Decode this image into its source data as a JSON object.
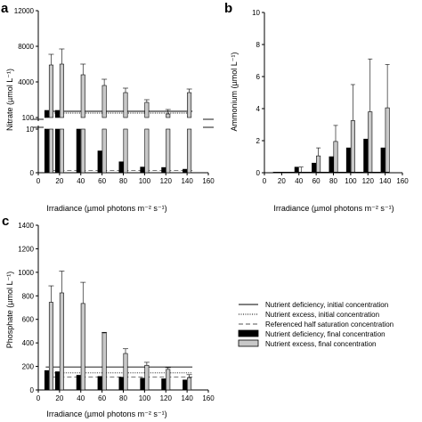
{
  "panels": {
    "a": {
      "letter": "a"
    },
    "b": {
      "letter": "b"
    },
    "c": {
      "letter": "c"
    }
  },
  "legend": {
    "items": [
      {
        "label": "Nutrient deficiency, initial concentration",
        "kind": "line-solid"
      },
      {
        "label": "Nutrient excess, initial concentration",
        "kind": "line-dotted"
      },
      {
        "label": "Referenced half saturation concentration",
        "kind": "line-dashed"
      },
      {
        "label": "Nutrient deficiency, final concentration",
        "kind": "bar-black"
      },
      {
        "label": "Nutrient excess, final concentration",
        "kind": "bar-grey"
      }
    ]
  },
  "colors": {
    "deficiency": "#000000",
    "excess": "#c8c8c8",
    "axis": "#000000"
  },
  "chart_data": [
    {
      "panel": "a",
      "type": "bar",
      "ylabel": "Nitrate (µmol L⁻¹)",
      "xlabel": "Irradiance (µmol photons m⁻² s⁻¹)",
      "xlim": [
        0,
        160
      ],
      "x_ticks": [
        "0",
        "20",
        "40",
        "60",
        "80",
        "100",
        "120",
        "140",
        "160"
      ],
      "broken_axis": true,
      "upper_ticks": [
        "100",
        "4000",
        "8000",
        "12000"
      ],
      "lower_ticks": [
        "0",
        "10"
      ],
      "x": [
        10,
        20,
        40,
        60,
        80,
        100,
        120,
        140
      ],
      "series": [
        {
          "name": "Nutrient deficiency, final concentration",
          "values": [
            100,
            100,
            10,
            5,
            2.5,
            1.3,
            1.2,
            0.8
          ]
        },
        {
          "name": "Nutrient excess, final concentration",
          "values": [
            5900,
            6000,
            4800,
            3600,
            2800,
            1700,
            300,
            2800
          ],
          "errors": [
            1200,
            1700,
            1200,
            700,
            500,
            300,
            250,
            400
          ]
        }
      ],
      "reference_lines": [
        {
          "name": "Nutrient deficiency, initial concentration",
          "value": 100
        },
        {
          "name": "Nutrient excess, initial concentration",
          "value": 100
        },
        {
          "name": "Referenced half saturation concentration",
          "value": 0.5
        }
      ]
    },
    {
      "panel": "b",
      "type": "bar",
      "ylabel": "Ammonium (µmol L⁻¹)",
      "xlabel": "Irradiance (µmol photons m⁻² s⁻¹)",
      "xlim": [
        0,
        160
      ],
      "ylim": [
        0,
        10
      ],
      "x_ticks": [
        "0",
        "20",
        "40",
        "60",
        "80",
        "100",
        "120",
        "140",
        "160"
      ],
      "y_ticks": [
        "0",
        "2",
        "4",
        "6",
        "8",
        "10"
      ],
      "x": [
        10,
        20,
        40,
        60,
        80,
        100,
        120,
        140
      ],
      "series": [
        {
          "name": "Nutrient deficiency, final concentration",
          "values": [
            0,
            0,
            0.35,
            0.6,
            1.0,
            1.55,
            2.1,
            1.55
          ]
        },
        {
          "name": "Nutrient excess, final concentration",
          "values": [
            0,
            0,
            0,
            1.05,
            1.95,
            3.25,
            3.8,
            4.05
          ],
          "errors": [
            0,
            0,
            0.35,
            0.5,
            1.0,
            2.25,
            3.3,
            2.7
          ]
        }
      ],
      "reference_lines": [
        {
          "name": "Nutrient deficiency, initial concentration",
          "value": 0
        },
        {
          "name": "Nutrient excess, initial concentration",
          "value": 0
        }
      ]
    },
    {
      "panel": "c",
      "type": "bar",
      "ylabel": "Phosphate (µmol L⁻¹)",
      "xlabel": "Irradiance (µmol photons m⁻² s⁻¹)",
      "xlim": [
        0,
        160
      ],
      "ylim": [
        0,
        1400
      ],
      "x_ticks": [
        "0",
        "20",
        "40",
        "60",
        "80",
        "100",
        "120",
        "140",
        "160"
      ],
      "y_ticks": [
        "0",
        "200",
        "400",
        "600",
        "800",
        "1000",
        "1200",
        "1400"
      ],
      "x": [
        10,
        20,
        40,
        60,
        80,
        100,
        120,
        140
      ],
      "series": [
        {
          "name": "Nutrient deficiency, final concentration",
          "values": [
            165,
            155,
            125,
            115,
            108,
            100,
            95,
            85
          ]
        },
        {
          "name": "Nutrient excess, final concentration",
          "values": [
            745,
            825,
            735,
            485,
            310,
            210,
            175,
            105
          ],
          "errors": [
            140,
            185,
            180,
            5,
            40,
            25,
            15,
            25
          ]
        }
      ],
      "reference_lines": [
        {
          "name": "Nutrient deficiency, initial concentration",
          "value": 195
        },
        {
          "name": "Nutrient excess, initial concentration",
          "value": 145
        },
        {
          "name": "Referenced half saturation concentration",
          "value": 110
        }
      ]
    }
  ]
}
